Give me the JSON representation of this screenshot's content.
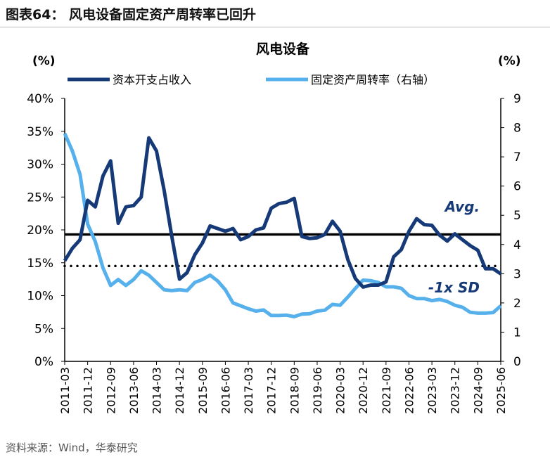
{
  "header": {
    "title": "图表64：  风电设备固定资产周转率已回升"
  },
  "source": "资料来源：Wind，华泰研究",
  "chart_data": {
    "type": "line",
    "title": "风电设备",
    "ylabel_left": "(%)",
    "ylabel_right": "(%)",
    "ylim_left": [
      0,
      40
    ],
    "ylim_right": [
      0,
      9
    ],
    "yticks_left": [
      "0%",
      "5%",
      "10%",
      "15%",
      "20%",
      "25%",
      "30%",
      "35%",
      "40%"
    ],
    "yticks_right": [
      "0",
      "1",
      "2",
      "3",
      "4",
      "5",
      "6",
      "7",
      "8",
      "9"
    ],
    "xtick_labels": [
      "2011-03",
      "2011-12",
      "2012-09",
      "2013-06",
      "2014-03",
      "2014-12",
      "2015-09",
      "2016-06",
      "2017-03",
      "2017-12",
      "2018-09",
      "2019-06",
      "2020-03",
      "2020-12",
      "2021-09",
      "2022-06",
      "2023-03",
      "2023-12",
      "2024-09",
      "2025-06"
    ],
    "x_start": "2011-03",
    "x_end": "2025-06",
    "frequency": "quarterly",
    "legend_position": "top",
    "series": [
      {
        "name": "资本开支占收入",
        "axis": "left",
        "color": "#163a78",
        "values": [
          15.3,
          17.2,
          18.5,
          24.5,
          23.5,
          28.2,
          30.5,
          21.0,
          23.5,
          23.7,
          25.0,
          34.0,
          32.0,
          26.0,
          19.0,
          12.5,
          13.5,
          16.2,
          18.0,
          20.6,
          20.2,
          19.8,
          20.2,
          18.5,
          19.0,
          20.0,
          20.3,
          23.3,
          24.0,
          24.2,
          24.8,
          19.0,
          18.7,
          18.8,
          19.3,
          21.3,
          19.8,
          15.5,
          12.6,
          11.3,
          11.6,
          11.6,
          12.1,
          15.9,
          17.0,
          19.8,
          21.7,
          20.8,
          20.7,
          19.2,
          18.3,
          19.4,
          18.5,
          17.6,
          16.9,
          14.1,
          14.1,
          13.3
        ]
      },
      {
        "name": "固定资产周转率（右轴）",
        "axis": "right",
        "color": "#56b0ec",
        "values": [
          7.8,
          7.2,
          6.4,
          4.7,
          4.1,
          3.2,
          2.6,
          2.8,
          2.6,
          2.8,
          3.1,
          2.95,
          2.7,
          2.45,
          2.42,
          2.45,
          2.42,
          2.7,
          2.8,
          2.95,
          2.75,
          2.45,
          2.0,
          1.9,
          1.8,
          1.72,
          1.76,
          1.57,
          1.57,
          1.58,
          1.53,
          1.62,
          1.63,
          1.72,
          1.75,
          1.95,
          1.92,
          2.2,
          2.5,
          2.78,
          2.76,
          2.7,
          2.55,
          2.55,
          2.5,
          2.25,
          2.15,
          2.15,
          2.08,
          2.12,
          2.05,
          1.92,
          1.85,
          1.68,
          1.65,
          1.65,
          1.67,
          1.9
        ]
      }
    ],
    "reference_lines": [
      {
        "label": "Avg.",
        "value": 19.3,
        "axis": "left",
        "style": "solid",
        "color": "#000000"
      },
      {
        "label": "-1x SD",
        "value": 14.5,
        "axis": "left",
        "style": "dotted",
        "color": "#000000"
      }
    ]
  }
}
